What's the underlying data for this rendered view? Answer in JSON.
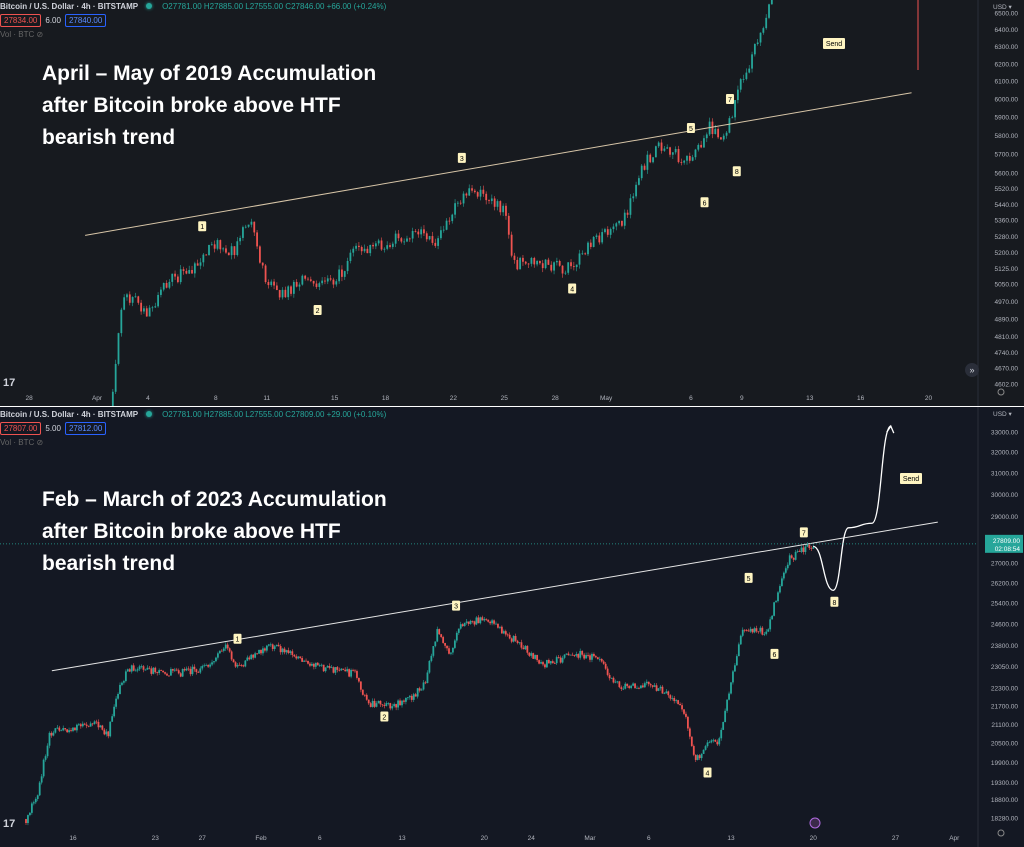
{
  "colors": {
    "up": "#26a69a",
    "down": "#ef5350",
    "top_bg": "#171a1f",
    "bottom_bg": "#141823",
    "grid": "#1f232c",
    "axis_text": "#b2b5be",
    "label_bg": "#fff5c2"
  },
  "panels": [
    {
      "header": {
        "symbol": "Bitcoin / U.S. Dollar · 4h · BITSTAMP",
        "ohlc": "O27781.00 H27885.00 L27555.00 C27846.00 +66.00 (+0.24%)",
        "bid": "27834.00",
        "spread": "6.00",
        "ask": "27840.00",
        "volume": "Vol · BTC"
      },
      "overlay_text": [
        "April – May of 2019 Accumulation",
        "after Bitcoin broke above HTF",
        "bearish trend"
      ],
      "currency": "USD",
      "send_label": "Send",
      "chart_data": {
        "type": "candlestick",
        "interval": "4h",
        "y_scale": "log",
        "ylim": [
          4602,
          6500
        ],
        "price_ticks": [
          6500,
          6400,
          6300,
          6200,
          6100,
          6000,
          5900,
          5800,
          5700,
          5600,
          5520,
          5440,
          5360,
          5280,
          5200,
          5125,
          5050,
          4970,
          4890,
          4810,
          4740,
          4670,
          4602
        ],
        "time_ticks": [
          [
            "28",
            "2019-03-28"
          ],
          [
            "Apr",
            "2019-04-01"
          ],
          [
            "4",
            "2019-04-04"
          ],
          [
            "8",
            "2019-04-08"
          ],
          [
            "11",
            "2019-04-11"
          ],
          [
            "15",
            "2019-04-15"
          ],
          [
            "18",
            "2019-04-18"
          ],
          [
            "22",
            "2019-04-22"
          ],
          [
            "25",
            "2019-04-25"
          ],
          [
            "28",
            "2019-04-28"
          ],
          [
            "May",
            "2019-05-01"
          ],
          [
            "6",
            "2019-05-06"
          ],
          [
            "9",
            "2019-05-09"
          ],
          [
            "13",
            "2019-05-13"
          ],
          [
            "16",
            "2019-05-16"
          ],
          [
            "20",
            "2019-05-20"
          ]
        ],
        "price_path": [
          [
            "2019-04-01.6",
            4150
          ],
          [
            "2019-04-02",
            4650
          ],
          [
            "2019-04-02.5",
            4950
          ],
          [
            "2019-04-03",
            5000
          ],
          [
            "2019-04-04",
            4900
          ],
          [
            "2019-04-05",
            5050
          ],
          [
            "2019-04-07",
            5150
          ],
          [
            "2019-04-08",
            5250
          ],
          [
            "2019-04-09",
            5200
          ],
          [
            "2019-04-10",
            5380
          ],
          [
            "2019-04-11",
            5050
          ],
          [
            "2019-04-12",
            5000
          ],
          [
            "2019-04-13",
            5080
          ],
          [
            "2019-04-15",
            5050
          ],
          [
            "2019-04-16",
            5200
          ],
          [
            "2019-04-18",
            5250
          ],
          [
            "2019-04-20",
            5300
          ],
          [
            "2019-04-21",
            5250
          ],
          [
            "2019-04-22",
            5400
          ],
          [
            "2019-04-23",
            5550
          ],
          [
            "2019-04-24",
            5450
          ],
          [
            "2019-04-25",
            5420
          ],
          [
            "2019-04-25.5",
            5150
          ],
          [
            "2019-04-27",
            5150
          ],
          [
            "2019-04-29",
            5120
          ],
          [
            "2019-04-30",
            5250
          ],
          [
            "2019-05-02",
            5350
          ],
          [
            "2019-05-03",
            5600
          ],
          [
            "2019-05-04",
            5750
          ],
          [
            "2019-05-05",
            5700
          ],
          [
            "2019-05-06",
            5650
          ],
          [
            "2019-05-07",
            5850
          ],
          [
            "2019-05-08",
            5800
          ],
          [
            "2019-05-09",
            6100
          ],
          [
            "2019-05-10",
            6350
          ],
          [
            "2019-05-11",
            6700
          ]
        ],
        "trendline": [
          [
            "2019-03-31.3",
            5285
          ],
          [
            "2019-05-19",
            6035
          ]
        ],
        "wave_labels": [
          [
            "1",
            "2019-04-07.2",
            5330
          ],
          [
            "2",
            "2019-04-14",
            4930
          ],
          [
            "3",
            "2019-04-22.5",
            5680
          ],
          [
            "4",
            "2019-04-29",
            5030
          ],
          [
            "5",
            "2019-05-06",
            5840
          ],
          [
            "6",
            "2019-05-06.8",
            5450
          ],
          [
            "7",
            "2019-05-08.3",
            6000
          ],
          [
            "8",
            "2019-05-08.7",
            5610
          ]
        ]
      }
    },
    {
      "header": {
        "symbol": "Bitcoin / U.S. Dollar · 4h · BITSTAMP",
        "ohlc": "O27781.00 H27885.00 L27555.00 C27809.00 +29.00 (+0.10%)",
        "bid": "27807.00",
        "spread": "5.00",
        "ask": "27812.00",
        "volume": "Vol · BTC"
      },
      "overlay_text": [
        "Feb – March of 2023 Accumulation",
        "after Bitcoin broke above HTF",
        "bearish trend"
      ],
      "currency": "USD",
      "send_label": "Send",
      "last_price": "27809.00",
      "countdown": "02:08:54",
      "chart_data": {
        "type": "candlestick",
        "interval": "4h",
        "y_scale": "log",
        "ylim": [
          18280,
          33000
        ],
        "price_ticks": [
          33000,
          32000,
          31000,
          30000,
          29000,
          27000,
          26200,
          25400,
          24600,
          23800,
          23050,
          22300,
          21700,
          21100,
          20500,
          19900,
          19300,
          18800,
          18280
        ],
        "time_ticks": [
          [
            "16",
            "2023-01-16"
          ],
          [
            "23",
            "2023-01-23"
          ],
          [
            "27",
            "2023-01-27"
          ],
          [
            "Feb",
            "2023-02-01"
          ],
          [
            "6",
            "2023-02-06"
          ],
          [
            "13",
            "2023-02-13"
          ],
          [
            "20",
            "2023-02-20"
          ],
          [
            "24",
            "2023-02-24"
          ],
          [
            "Mar",
            "2023-03-01"
          ],
          [
            "6",
            "2023-03-06"
          ],
          [
            "13",
            "2023-03-13"
          ],
          [
            "20",
            "2023-03-20"
          ],
          [
            "27",
            "2023-03-27"
          ],
          [
            "Apr",
            "2023-04-01"
          ]
        ],
        "price_path": [
          [
            "2023-01-12",
            18250
          ],
          [
            "2023-01-13",
            19000
          ],
          [
            "2023-01-14",
            20800
          ],
          [
            "2023-01-16",
            21000
          ],
          [
            "2023-01-18",
            21100
          ],
          [
            "2023-01-19",
            20800
          ],
          [
            "2023-01-20",
            22500
          ],
          [
            "2023-01-21",
            23000
          ],
          [
            "2023-01-23",
            22900
          ],
          [
            "2023-01-25",
            22800
          ],
          [
            "2023-01-27",
            23000
          ],
          [
            "2023-01-29",
            23700
          ],
          [
            "2023-01-30",
            23000
          ],
          [
            "2023-02-01",
            23600
          ],
          [
            "2023-02-02",
            23800
          ],
          [
            "2023-02-04",
            23400
          ],
          [
            "2023-02-06",
            23000
          ],
          [
            "2023-02-09",
            22800
          ],
          [
            "2023-02-10",
            21800
          ],
          [
            "2023-02-12",
            21700
          ],
          [
            "2023-02-14",
            22000
          ],
          [
            "2023-02-15",
            22500
          ],
          [
            "2023-02-16",
            24400
          ],
          [
            "2023-02-17",
            23500
          ],
          [
            "2023-02-18",
            24500
          ],
          [
            "2023-02-20",
            24800
          ],
          [
            "2023-02-22",
            24200
          ],
          [
            "2023-02-24",
            23500
          ],
          [
            "2023-02-25",
            23100
          ],
          [
            "2023-02-27",
            23400
          ],
          [
            "2023-02-28",
            23500
          ],
          [
            "2023-03-02",
            23300
          ],
          [
            "2023-03-03",
            22400
          ],
          [
            "2023-03-06",
            22400
          ],
          [
            "2023-03-07",
            22300
          ],
          [
            "2023-03-09",
            21500
          ],
          [
            "2023-03-10",
            20000
          ],
          [
            "2023-03-11",
            20400
          ],
          [
            "2023-03-12",
            20600
          ],
          [
            "2023-03-13",
            22500
          ],
          [
            "2023-03-14",
            24500
          ],
          [
            "2023-03-15",
            24400
          ],
          [
            "2023-03-16",
            24300
          ],
          [
            "2023-03-17",
            25800
          ],
          [
            "2023-03-18",
            27200
          ],
          [
            "2023-03-19",
            27500
          ],
          [
            "2023-03-20",
            27809
          ]
        ],
        "trendline": [
          [
            "2023-01-14.2",
            22900
          ],
          [
            "2023-03-30.6",
            28750
          ]
        ],
        "projection": [
          [
            "2023-03-20",
            27700
          ],
          [
            "2023-03-21.7",
            25900
          ],
          [
            "2023-03-23",
            28500
          ],
          [
            "2023-03-25",
            28700
          ],
          [
            "2023-03-26.6",
            33300
          ]
        ],
        "wave_labels": [
          [
            "1",
            "2023-01-30",
            24050
          ],
          [
            "2",
            "2023-02-11.5",
            21350
          ],
          [
            "3",
            "2023-02-17.6",
            25300
          ],
          [
            "4",
            "2023-03-11",
            19600
          ],
          [
            "5",
            "2023-03-14.5",
            26400
          ],
          [
            "6",
            "2023-03-16.7",
            23500
          ],
          [
            "7",
            "2023-03-19.2",
            28300
          ],
          [
            "8",
            "2023-03-21.8",
            25450
          ]
        ]
      }
    }
  ]
}
